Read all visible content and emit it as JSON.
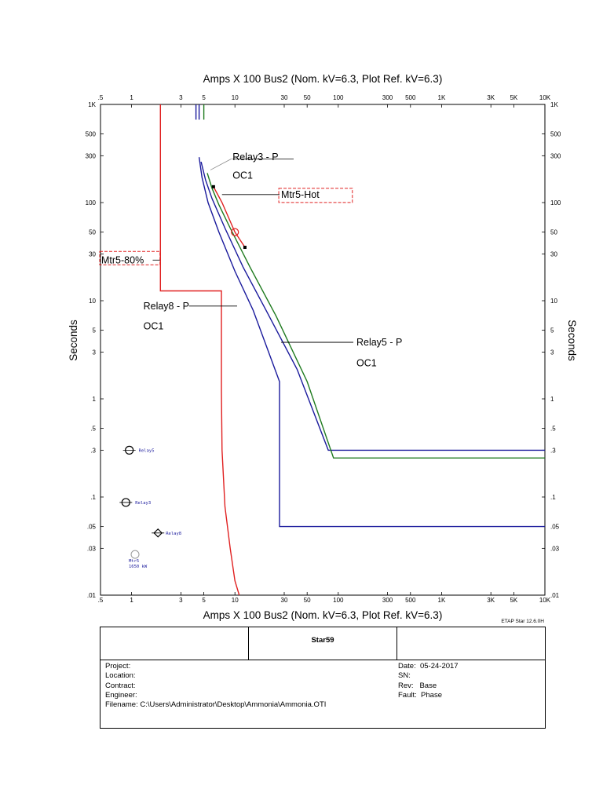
{
  "chart_data": {
    "type": "line",
    "title": "Amps  X  100   Bus2 (Nom. kV=6.3, Plot Ref. kV=6.3)",
    "xlabel": "Amps  X  100   Bus2 (Nom. kV=6.3, Plot Ref. kV=6.3)",
    "ylabel": "Seconds",
    "xscale": "log",
    "yscale": "log",
    "xlim": [
      0.5,
      10000
    ],
    "ylim": [
      0.01,
      1000
    ],
    "x_ticks": [
      {
        "v": 0.5,
        "label": ".5"
      },
      {
        "v": 1,
        "label": "1"
      },
      {
        "v": 3,
        "label": "3"
      },
      {
        "v": 5,
        "label": "5"
      },
      {
        "v": 10,
        "label": "10"
      },
      {
        "v": 30,
        "label": "30"
      },
      {
        "v": 50,
        "label": "50"
      },
      {
        "v": 100,
        "label": "100"
      },
      {
        "v": 300,
        "label": "300"
      },
      {
        "v": 500,
        "label": "500"
      },
      {
        "v": 1000,
        "label": "1K"
      },
      {
        "v": 3000,
        "label": "3K"
      },
      {
        "v": 5000,
        "label": "5K"
      },
      {
        "v": 10000,
        "label": "10K"
      }
    ],
    "y_ticks": [
      {
        "v": 1000,
        "label": "1K"
      },
      {
        "v": 500,
        "label": "500"
      },
      {
        "v": 300,
        "label": "300"
      },
      {
        "v": 100,
        "label": "100"
      },
      {
        "v": 50,
        "label": "50"
      },
      {
        "v": 30,
        "label": "30"
      },
      {
        "v": 10,
        "label": "10"
      },
      {
        "v": 5,
        "label": "5"
      },
      {
        "v": 3,
        "label": "3"
      },
      {
        "v": 1,
        "label": "1"
      },
      {
        "v": 0.5,
        "label": ".5"
      },
      {
        "v": 0.3,
        "label": ".3"
      },
      {
        "v": 0.1,
        "label": ".1"
      },
      {
        "v": 0.05,
        "label": ".05"
      },
      {
        "v": 0.03,
        "label": ".03"
      },
      {
        "v": 0.01,
        "label": ".01"
      }
    ],
    "series": [
      {
        "name": "Mtr5-80%",
        "color": "#e02020",
        "points": [
          [
            1.9,
            1000
          ],
          [
            1.9,
            12.6
          ],
          [
            7.4,
            12.6
          ],
          [
            7.4,
            1.2
          ],
          [
            7.5,
            0.3
          ],
          [
            8,
            0.08
          ],
          [
            9,
            0.03
          ],
          [
            10,
            0.014
          ],
          [
            11,
            0.01
          ]
        ]
      },
      {
        "name": "Relay8 - P OC1",
        "color": "#1a1a9c",
        "points": [
          [
            4.5,
            290
          ],
          [
            4.8,
            180
          ],
          [
            5.5,
            100
          ],
          [
            7,
            50
          ],
          [
            10,
            20
          ],
          [
            15,
            8
          ],
          [
            27,
            1.5
          ],
          [
            27,
            0.05
          ],
          [
            10000,
            0.05
          ]
        ]
      },
      {
        "name": "Relay8 - P OC1 (inst.)",
        "color": "#1a1a9c",
        "points": [
          [
            4.2,
            1000
          ],
          [
            4.2,
            700
          ]
        ]
      },
      {
        "name": "Relay8 - P OC1 (inst. 2)",
        "color": "#1a1a9c",
        "points": [
          [
            4.5,
            1000
          ],
          [
            4.5,
            700
          ]
        ]
      },
      {
        "name": "Relay5 - P OC1",
        "color": "#1a1a9c",
        "points": [
          [
            4.7,
            260
          ],
          [
            5.2,
            170
          ],
          [
            6,
            110
          ],
          [
            8,
            55
          ],
          [
            12,
            22
          ],
          [
            20,
            8
          ],
          [
            40,
            2
          ],
          [
            80,
            0.3
          ],
          [
            10000,
            0.3
          ]
        ]
      },
      {
        "name": "Relay3 - P OC1",
        "color": "#1e7a1e",
        "points": [
          [
            5.4,
            200
          ],
          [
            6,
            140
          ],
          [
            7,
            95
          ],
          [
            9,
            55
          ],
          [
            14,
            22
          ],
          [
            25,
            7
          ],
          [
            50,
            1.5
          ],
          [
            90,
            0.25
          ],
          [
            10000,
            0.25
          ]
        ]
      },
      {
        "name": "Relay3 - P OC1 (inst.)",
        "color": "#1e7a1e",
        "points": [
          [
            5,
            1000
          ],
          [
            5,
            700
          ]
        ]
      },
      {
        "name": "Mtr5-Hot",
        "color": "#e02020",
        "points": [
          [
            6.2,
            145
          ],
          [
            7.5,
            100
          ],
          [
            10,
            50
          ],
          [
            12.5,
            35
          ]
        ]
      }
    ],
    "annotations": [
      {
        "text": "Relay3 - P",
        "line2": "OC1"
      },
      {
        "text": "Mtr5-Hot"
      },
      {
        "text": "Mtr5-80%"
      },
      {
        "text": "Relay8 - P",
        "line2": "OC1"
      },
      {
        "text": "Relay5 - P",
        "line2": "OC1"
      }
    ],
    "markers": [
      {
        "label": "Relay5",
        "x": 0.95,
        "y": 0.3
      },
      {
        "label": "Relay3",
        "x": 0.88,
        "y": 0.088
      },
      {
        "label": "Relay8",
        "x": 1.8,
        "y": 0.043
      },
      {
        "label": "Mtr5",
        "line2": "1650 kW",
        "x": 1.08,
        "y": 0.026
      }
    ]
  },
  "title_block": {
    "version": "ETAP Star 12.6.0H",
    "name": "Star59",
    "left": "Project:\nLocation:\nContract:\nEngineer:\nFilename: C:\\Users\\Administrator\\Desktop\\Ammonia\\Ammonia.OTI",
    "right": "Date:  05-24-2017\nSN:\nRev:   Base\nFault:  Phase"
  }
}
